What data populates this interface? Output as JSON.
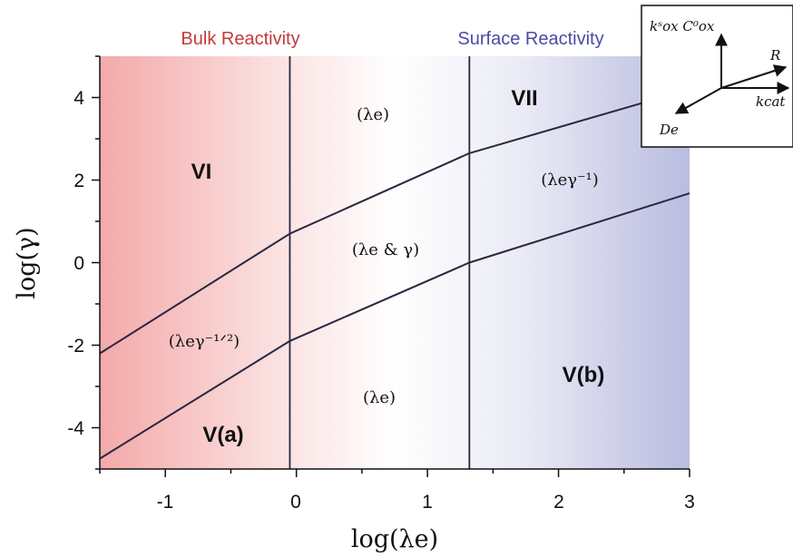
{
  "header": {
    "bulk": "Bulk Reactivity",
    "surface": "Surface Reactivity",
    "bulk_color": "#c53a3a",
    "surface_color": "#4a4ba6"
  },
  "axes": {
    "xlabel": "log(λe)",
    "ylabel": "log(γ)",
    "xlim": [
      -1.5,
      3
    ],
    "ylim": [
      -5,
      5
    ],
    "xticks": [
      "-1",
      "0",
      "1",
      "2",
      "3"
    ],
    "yticks": [
      "-4",
      "-2",
      "0",
      "2",
      "4"
    ]
  },
  "chart_data": {
    "type": "line",
    "xlim": [
      -1.5,
      3
    ],
    "ylim": [
      -5,
      5
    ],
    "vertical_boundaries": [
      -0.05,
      1.32
    ],
    "series": [
      {
        "points": [
          [
            -1.5,
            -2.2
          ],
          [
            -0.05,
            0.7
          ],
          [
            1.32,
            2.65
          ],
          [
            3,
            4.2
          ]
        ]
      },
      {
        "points": [
          [
            -1.5,
            -4.75
          ],
          [
            -0.05,
            -1.9
          ],
          [
            1.32,
            0.0
          ],
          [
            3,
            1.68
          ]
        ]
      }
    ]
  },
  "regions": {
    "vi": "VI",
    "vii": "VII",
    "va": "V(a)",
    "vb": "V(b)",
    "lam_top": "(λe)",
    "lam_gamma_inv": "(λeγ⁻¹)",
    "lam_and_gamma": "(λe & γ)",
    "lam_gamma_half": "(λeγ⁻¹ᐟ²)",
    "lam_bottom": "(λe)"
  },
  "inset": {
    "top_label": "kˢox C⁰ox",
    "r_label": "R",
    "kcat_label": "kcat",
    "de_label": "De"
  }
}
